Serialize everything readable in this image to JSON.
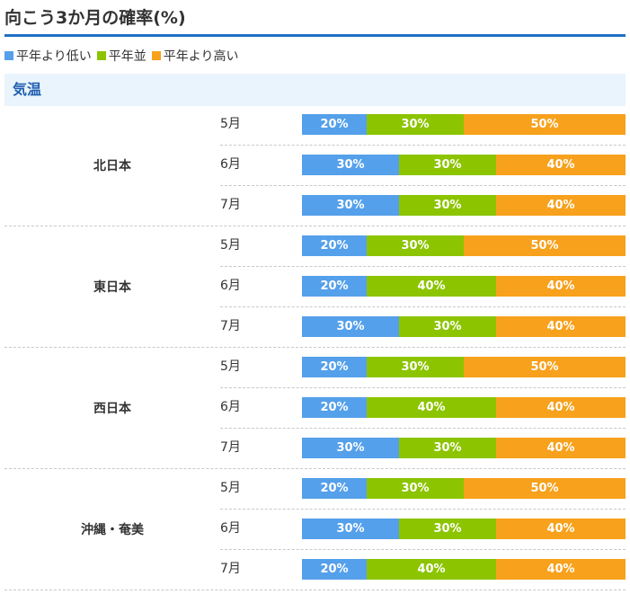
{
  "title": "向こう3か月の確率(%)",
  "legend": [
    {
      "label": "平年より低い",
      "color": "#55a0ea"
    },
    {
      "label": "平年並",
      "color": "#8cc400"
    },
    {
      "label": "平年より高い",
      "color": "#f7a11c"
    }
  ],
  "section": {
    "label": "気温",
    "color": "#1f5fb0",
    "background": "#eaf4fd"
  },
  "rule_color": "#1f6fc4",
  "chart_data": {
    "type": "bar",
    "stacked": true,
    "orientation": "horizontal",
    "categories": [
      "低い",
      "並",
      "高い"
    ],
    "value_unit": "%",
    "regions": [
      {
        "name": "北日本",
        "months": [
          {
            "month": "5月",
            "values": [
              20,
              30,
              50
            ],
            "labels": [
              "20%",
              "30%",
              "50%"
            ]
          },
          {
            "month": "6月",
            "values": [
              30,
              30,
              40
            ],
            "labels": [
              "30%",
              "30%",
              "40%"
            ]
          },
          {
            "month": "7月",
            "values": [
              30,
              30,
              40
            ],
            "labels": [
              "30%",
              "30%",
              "40%"
            ]
          }
        ]
      },
      {
        "name": "東日本",
        "months": [
          {
            "month": "5月",
            "values": [
              20,
              30,
              50
            ],
            "labels": [
              "20%",
              "30%",
              "50%"
            ]
          },
          {
            "month": "6月",
            "values": [
              20,
              40,
              40
            ],
            "labels": [
              "20%",
              "40%",
              "40%"
            ]
          },
          {
            "month": "7月",
            "values": [
              30,
              30,
              40
            ],
            "labels": [
              "30%",
              "30%",
              "40%"
            ]
          }
        ]
      },
      {
        "name": "西日本",
        "months": [
          {
            "month": "5月",
            "values": [
              20,
              30,
              50
            ],
            "labels": [
              "20%",
              "30%",
              "50%"
            ]
          },
          {
            "month": "6月",
            "values": [
              20,
              40,
              40
            ],
            "labels": [
              "20%",
              "40%",
              "40%"
            ]
          },
          {
            "month": "7月",
            "values": [
              30,
              30,
              40
            ],
            "labels": [
              "30%",
              "30%",
              "40%"
            ]
          }
        ]
      },
      {
        "name": "沖縄・奄美",
        "months": [
          {
            "month": "5月",
            "values": [
              20,
              30,
              50
            ],
            "labels": [
              "20%",
              "30%",
              "50%"
            ]
          },
          {
            "month": "6月",
            "values": [
              30,
              30,
              40
            ],
            "labels": [
              "30%",
              "30%",
              "40%"
            ]
          },
          {
            "month": "7月",
            "values": [
              20,
              40,
              40
            ],
            "labels": [
              "20%",
              "40%",
              "40%"
            ]
          }
        ]
      }
    ]
  }
}
